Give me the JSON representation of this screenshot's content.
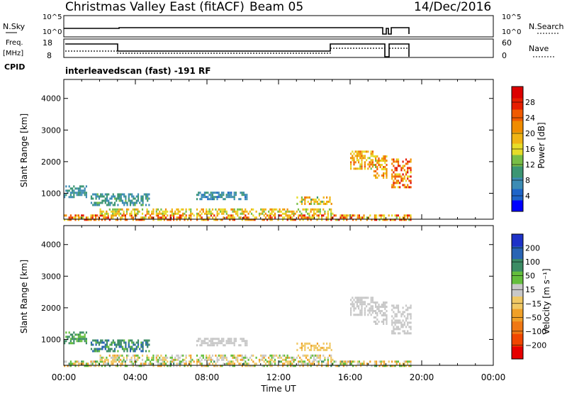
{
  "header": {
    "title": "Christmas Valley East (fitACF)",
    "beam": "Beam 05",
    "date": "14/Dec/2016"
  },
  "top_panels": {
    "nsky_label": "N.Sky",
    "nsky_ticks_left": [
      "10^5",
      "10^0"
    ],
    "nsky_ticks_right": [
      "10^5",
      "10^0"
    ],
    "nsearch_label": "N.Search",
    "freq_label_1": "Freq.",
    "freq_label_2": "[MHz]",
    "freq_ticks": [
      "18",
      "8"
    ],
    "nave_ticks": [
      "60",
      "0"
    ],
    "nave_label": "Nave",
    "cpid_label": "CPID",
    "cpid_value": "interleavedscan (fast) -191 RF"
  },
  "x_axis": {
    "label": "Time UT",
    "ticks": [
      "00:00",
      "04:00",
      "08:00",
      "12:00",
      "16:00",
      "20:00",
      "00:00"
    ]
  },
  "colorbars": {
    "power": {
      "label": "Power [dB]",
      "ticks": [
        "4",
        "8",
        "12",
        "16",
        "20",
        "24",
        "28"
      ],
      "colors": [
        "#0000ff",
        "#1e64c8",
        "#3c8cb4",
        "#3c9673",
        "#78be46",
        "#e6dc28",
        "#f0b414",
        "#f08c00",
        "#f05a00",
        "#e61e00",
        "#dc0000"
      ]
    },
    "velocity": {
      "label": "Velocity [m s⁻¹]",
      "ticks": [
        "200",
        "100",
        "50",
        "15",
        "−15",
        "−50",
        "−100",
        "−200"
      ],
      "colors": [
        "#1e32c8",
        "#2864b4",
        "#3c8c64",
        "#64be3c",
        "#c8c8c8",
        "#f0c864",
        "#f0a028",
        "#f07814",
        "#f04600",
        "#e60000"
      ]
    }
  },
  "chart_data": [
    {
      "type": "heatmap",
      "name": "power",
      "ylabel": "Slant Range [km]",
      "xlabel": "Time UT",
      "xlim_hours": [
        0,
        24
      ],
      "ylim_km": [
        180,
        4600
      ],
      "yticks": [
        1000,
        2000,
        3000,
        4000
      ],
      "color_range_db": [
        0,
        32
      ],
      "regions": [
        {
          "t": [
            0.0,
            1.3
          ],
          "r": [
            900,
            1250
          ],
          "v": [
            6,
            11
          ]
        },
        {
          "t": [
            1.5,
            4.8
          ],
          "r": [
            650,
            1000
          ],
          "v": [
            6,
            12
          ]
        },
        {
          "t": [
            0.0,
            19.4
          ],
          "r": [
            190,
            330
          ],
          "v": [
            14,
            30
          ]
        },
        {
          "t": [
            2.0,
            15.0
          ],
          "r": [
            330,
            520
          ],
          "v": [
            12,
            22
          ]
        },
        {
          "t": [
            7.4,
            10.2
          ],
          "r": [
            820,
            1050
          ],
          "v": [
            5,
            10
          ]
        },
        {
          "t": [
            13.0,
            15.0
          ],
          "r": [
            650,
            900
          ],
          "v": [
            10,
            24
          ]
        },
        {
          "t": [
            16.0,
            17.3
          ],
          "r": [
            1800,
            2350
          ],
          "v": [
            14,
            26
          ]
        },
        {
          "t": [
            17.3,
            18.0
          ],
          "r": [
            1500,
            2200
          ],
          "v": [
            14,
            26
          ]
        },
        {
          "t": [
            18.3,
            19.4
          ],
          "r": [
            1200,
            2100
          ],
          "v": [
            16,
            30
          ]
        }
      ]
    },
    {
      "type": "heatmap",
      "name": "velocity",
      "ylabel": "Slant Range [km]",
      "xlabel": "Time UT",
      "xlim_hours": [
        0,
        24
      ],
      "ylim_km": [
        180,
        4600
      ],
      "yticks": [
        1000,
        2000,
        3000,
        4000
      ],
      "regions": [
        {
          "t": [
            0.0,
            1.3
          ],
          "r": [
            900,
            1250
          ],
          "v": [
            30,
            80
          ]
        },
        {
          "t": [
            1.5,
            4.8
          ],
          "r": [
            650,
            1000
          ],
          "v": [
            40,
            120
          ]
        },
        {
          "t": [
            0.0,
            19.4
          ],
          "r": [
            190,
            330
          ],
          "v": [
            -80,
            60
          ]
        },
        {
          "t": [
            2.0,
            15.0
          ],
          "r": [
            330,
            520
          ],
          "v": [
            -60,
            40
          ]
        },
        {
          "t": [
            7.4,
            10.2
          ],
          "r": [
            820,
            1050
          ],
          "v": [
            -10,
            10
          ]
        },
        {
          "t": [
            13.0,
            15.0
          ],
          "r": [
            650,
            900
          ],
          "v": [
            -60,
            -20
          ]
        },
        {
          "t": [
            16.0,
            17.3
          ],
          "r": [
            1800,
            2350
          ],
          "v": [
            -12,
            12
          ]
        },
        {
          "t": [
            17.3,
            18.0
          ],
          "r": [
            1500,
            2200
          ],
          "v": [
            -12,
            12
          ]
        },
        {
          "t": [
            18.3,
            19.4
          ],
          "r": [
            1200,
            2100
          ],
          "v": [
            -12,
            12
          ]
        }
      ]
    }
  ]
}
